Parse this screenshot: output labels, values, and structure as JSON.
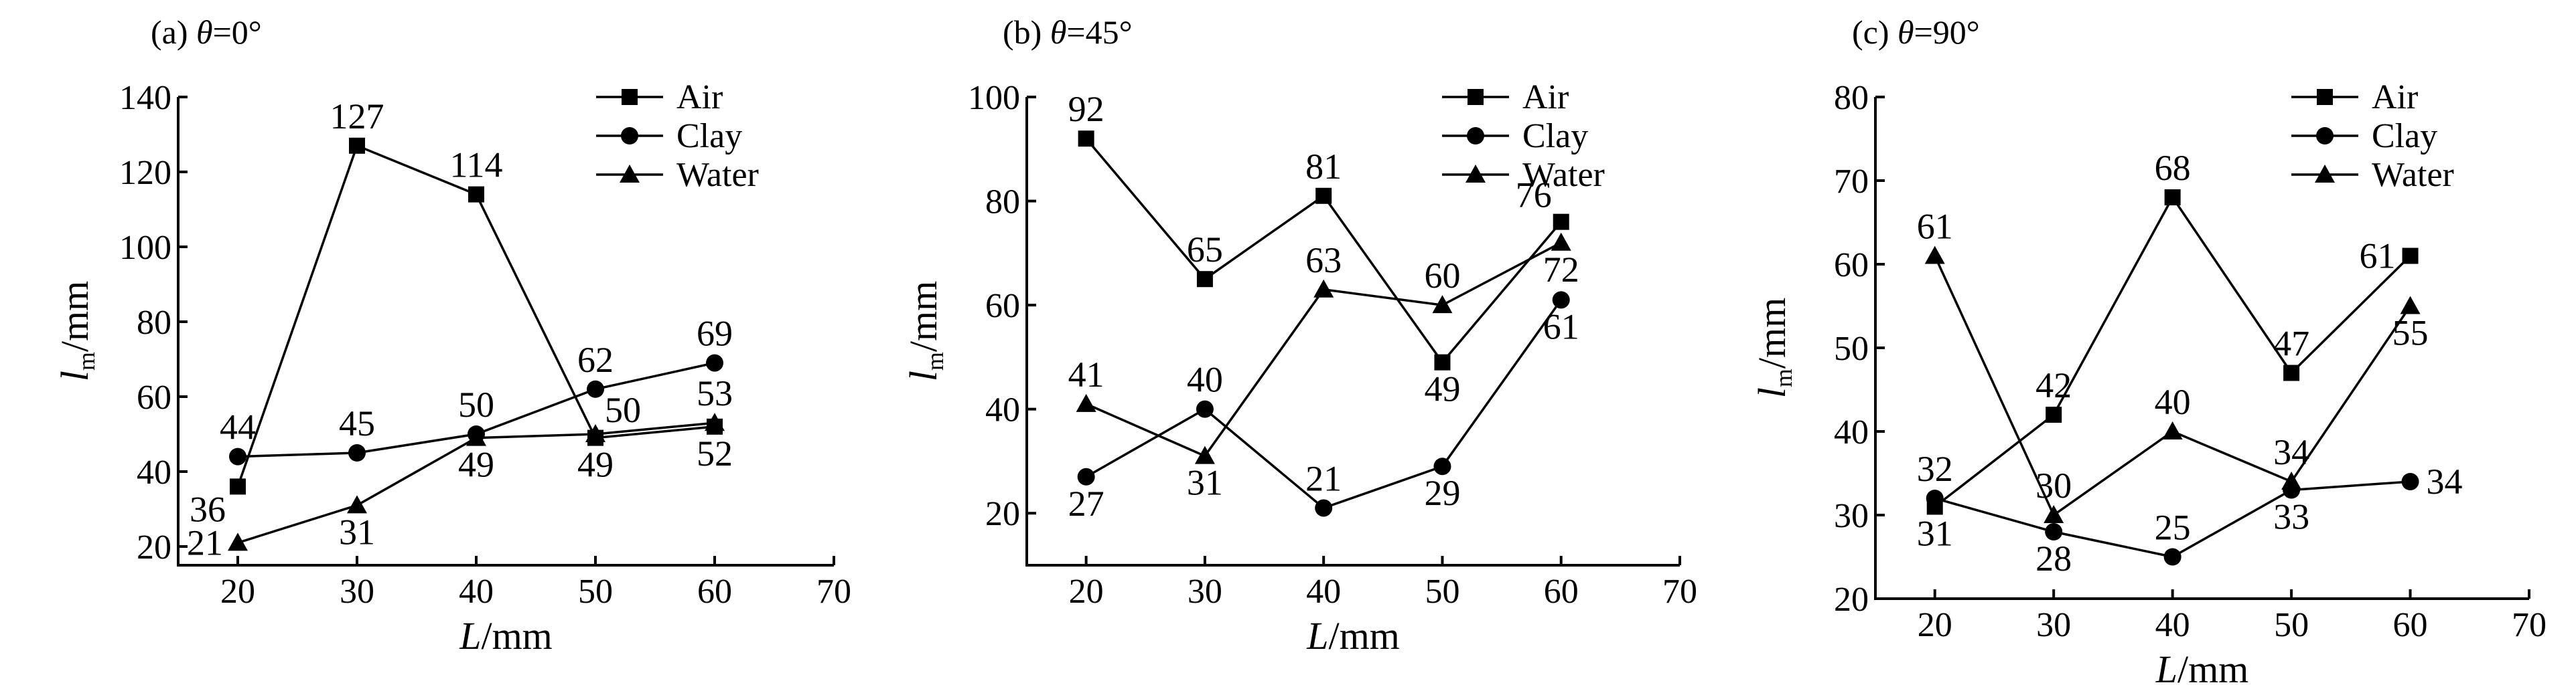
{
  "chart_data": [
    {
      "type": "line",
      "title": "(a) θ=0°",
      "title_prefix": "(a) ",
      "title_var": "θ",
      "title_rest": "=0°",
      "xlabel_var": "L",
      "xlabel_unit": "/mm",
      "ylabel_var": "l",
      "ylabel_sub": "m",
      "ylabel_unit": "/mm",
      "xlim": [
        15,
        70
      ],
      "ylim": [
        15,
        140
      ],
      "xticks": [
        20,
        30,
        40,
        50,
        60,
        70
      ],
      "yticks": [
        20,
        40,
        60,
        80,
        100,
        120,
        140
      ],
      "grid": false,
      "legend": "top-right",
      "x": [
        20,
        30,
        40,
        50,
        60
      ],
      "series": [
        {
          "name": "Air",
          "marker": "square",
          "values": [
            36,
            127,
            114,
            49,
            52
          ]
        },
        {
          "name": "Clay",
          "marker": "circle",
          "values": [
            44,
            45,
            50,
            62,
            69
          ]
        },
        {
          "name": "Water",
          "marker": "triangle",
          "values": [
            21,
            31,
            49,
            50,
            53
          ]
        }
      ],
      "annotations": [
        {
          "text": "36",
          "x": 20,
          "y": 36,
          "pos": "bl"
        },
        {
          "text": "127",
          "x": 30,
          "y": 127,
          "pos": "above"
        },
        {
          "text": "114",
          "x": 40,
          "y": 114,
          "pos": "above"
        },
        {
          "text": "49",
          "x": 50,
          "y": 49,
          "pos": "below"
        },
        {
          "text": "52",
          "x": 60,
          "y": 52,
          "pos": "below"
        },
        {
          "text": "44",
          "x": 20,
          "y": 44,
          "pos": "above"
        },
        {
          "text": "45",
          "x": 30,
          "y": 45,
          "pos": "above"
        },
        {
          "text": "50",
          "x": 40,
          "y": 50,
          "pos": "above"
        },
        {
          "text": "62",
          "x": 50,
          "y": 62,
          "pos": "above"
        },
        {
          "text": "69",
          "x": 60,
          "y": 69,
          "pos": "above"
        },
        {
          "text": "21",
          "x": 20,
          "y": 21,
          "pos": "left"
        },
        {
          "text": "31",
          "x": 30,
          "y": 31,
          "pos": "below"
        },
        {
          "text": "49",
          "x": 40,
          "y": 49,
          "pos": "below"
        },
        {
          "text": "50",
          "x": 50,
          "y": 50,
          "pos": "ar"
        },
        {
          "text": "53",
          "x": 60,
          "y": 53,
          "pos": "above"
        }
      ]
    },
    {
      "type": "line",
      "title": "(b) θ=45°",
      "title_prefix": "(b) ",
      "title_var": "θ",
      "title_rest": "=45°",
      "xlabel_var": "L",
      "xlabel_unit": "/mm",
      "ylabel_var": "l",
      "ylabel_sub": "m",
      "ylabel_unit": "/mm",
      "xlim": [
        15,
        70
      ],
      "ylim": [
        10,
        100
      ],
      "xticks": [
        20,
        30,
        40,
        50,
        60,
        70
      ],
      "yticks": [
        20,
        40,
        60,
        80,
        100
      ],
      "grid": false,
      "legend": "top-right",
      "x": [
        20,
        30,
        40,
        50,
        60
      ],
      "series": [
        {
          "name": "Air",
          "marker": "square",
          "values": [
            92,
            65,
            81,
            49,
            76
          ]
        },
        {
          "name": "Clay",
          "marker": "circle",
          "values": [
            27,
            40,
            21,
            29,
            61
          ]
        },
        {
          "name": "Water",
          "marker": "triangle",
          "values": [
            41,
            31,
            63,
            60,
            72
          ]
        }
      ],
      "annotations": [
        {
          "text": "92",
          "x": 20,
          "y": 92,
          "pos": "above"
        },
        {
          "text": "65",
          "x": 30,
          "y": 65,
          "pos": "above"
        },
        {
          "text": "81",
          "x": 40,
          "y": 81,
          "pos": "above"
        },
        {
          "text": "49",
          "x": 50,
          "y": 49,
          "pos": "below"
        },
        {
          "text": "76",
          "x": 60,
          "y": 76,
          "pos": "al"
        },
        {
          "text": "27",
          "x": 20,
          "y": 27,
          "pos": "below"
        },
        {
          "text": "40",
          "x": 30,
          "y": 40,
          "pos": "above"
        },
        {
          "text": "21",
          "x": 40,
          "y": 21,
          "pos": "above"
        },
        {
          "text": "29",
          "x": 50,
          "y": 29,
          "pos": "below"
        },
        {
          "text": "61",
          "x": 60,
          "y": 61,
          "pos": "below"
        },
        {
          "text": "41",
          "x": 20,
          "y": 41,
          "pos": "above"
        },
        {
          "text": "31",
          "x": 30,
          "y": 31,
          "pos": "below"
        },
        {
          "text": "63",
          "x": 40,
          "y": 63,
          "pos": "above"
        },
        {
          "text": "60",
          "x": 50,
          "y": 60,
          "pos": "above"
        },
        {
          "text": "72",
          "x": 60,
          "y": 72,
          "pos": "below"
        }
      ]
    },
    {
      "type": "line",
      "title": "(c) θ=90°",
      "title_prefix": "(c) ",
      "title_var": "θ",
      "title_rest": "=90°",
      "xlabel_var": "L",
      "xlabel_unit": "/mm",
      "ylabel_var": "l",
      "ylabel_sub": "m",
      "ylabel_unit": "/mm",
      "xlim": [
        15,
        70
      ],
      "ylim": [
        20,
        80
      ],
      "xticks": [
        20,
        30,
        40,
        50,
        60,
        70
      ],
      "yticks": [
        20,
        30,
        40,
        50,
        60,
        70,
        80
      ],
      "grid": false,
      "legend": "top-right",
      "x": [
        20,
        30,
        40,
        50,
        60
      ],
      "series": [
        {
          "name": "Air",
          "marker": "square",
          "values": [
            31,
            42,
            68,
            47,
            61
          ]
        },
        {
          "name": "Clay",
          "marker": "circle",
          "values": [
            32,
            28,
            25,
            33,
            34
          ]
        },
        {
          "name": "Water",
          "marker": "triangle",
          "values": [
            61,
            30,
            40,
            34,
            55
          ]
        }
      ],
      "annotations": [
        {
          "text": "31",
          "x": 20,
          "y": 31,
          "pos": "below"
        },
        {
          "text": "42",
          "x": 30,
          "y": 42,
          "pos": "above"
        },
        {
          "text": "68",
          "x": 40,
          "y": 68,
          "pos": "above"
        },
        {
          "text": "47",
          "x": 50,
          "y": 47,
          "pos": "above"
        },
        {
          "text": "61",
          "x": 60,
          "y": 61,
          "pos": "left"
        },
        {
          "text": "32",
          "x": 20,
          "y": 32,
          "pos": "above"
        },
        {
          "text": "28",
          "x": 30,
          "y": 28,
          "pos": "below"
        },
        {
          "text": "25",
          "x": 40,
          "y": 25,
          "pos": "above"
        },
        {
          "text": "33",
          "x": 50,
          "y": 33,
          "pos": "below"
        },
        {
          "text": "34",
          "x": 60,
          "y": 34,
          "pos": "right"
        },
        {
          "text": "61",
          "x": 20,
          "y": 61,
          "pos": "above"
        },
        {
          "text": "30",
          "x": 30,
          "y": 30,
          "pos": "above"
        },
        {
          "text": "40",
          "x": 40,
          "y": 40,
          "pos": "above"
        },
        {
          "text": "34",
          "x": 50,
          "y": 34,
          "pos": "above"
        },
        {
          "text": "55",
          "x": 60,
          "y": 55,
          "pos": "below"
        }
      ]
    }
  ]
}
